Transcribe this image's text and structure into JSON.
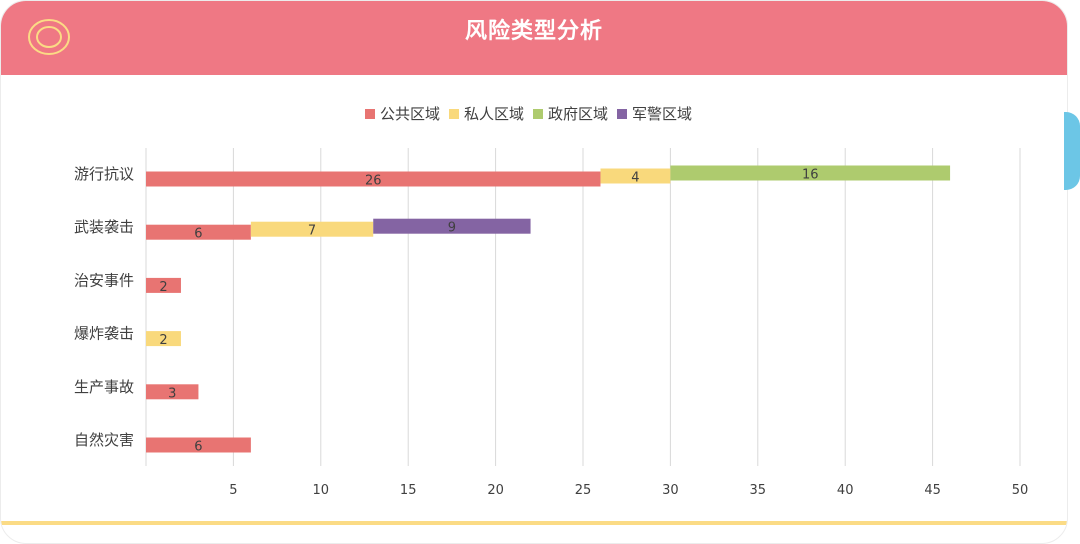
{
  "header": {
    "title": "风险类型分析",
    "logo_icon": "concentric-rings-icon"
  },
  "colors": {
    "header_bg": "#ef7884",
    "bottom_line": "#fbdb85",
    "side_tab": "#6cc6e6",
    "grid": "#d9d9d9",
    "text": "#404040"
  },
  "chart_data": {
    "type": "bar",
    "orientation": "horizontal",
    "stacked": true,
    "title": "风险类型分析",
    "categories": [
      "游行抗议",
      "武装袭击",
      "治安事件",
      "爆炸袭击",
      "生产事故",
      "自然灾害"
    ],
    "series": [
      {
        "name": "公共区域",
        "color": "#e87472",
        "values": [
          26,
          6,
          2,
          0,
          3,
          6
        ]
      },
      {
        "name": "私人区域",
        "color": "#f9d97c",
        "values": [
          4,
          7,
          0,
          2,
          0,
          0
        ]
      },
      {
        "name": "政府区域",
        "color": "#aecb6e",
        "values": [
          16,
          0,
          0,
          0,
          0,
          0
        ]
      },
      {
        "name": "军警区域",
        "color": "#8464a3",
        "values": [
          0,
          9,
          0,
          0,
          0,
          0
        ]
      }
    ],
    "xlim": [
      0,
      50
    ],
    "xticks": [
      5,
      10,
      15,
      20,
      25,
      30,
      35,
      40,
      45,
      50
    ],
    "grid": true,
    "legend": "top-center",
    "xlabel": "",
    "ylabel": ""
  }
}
